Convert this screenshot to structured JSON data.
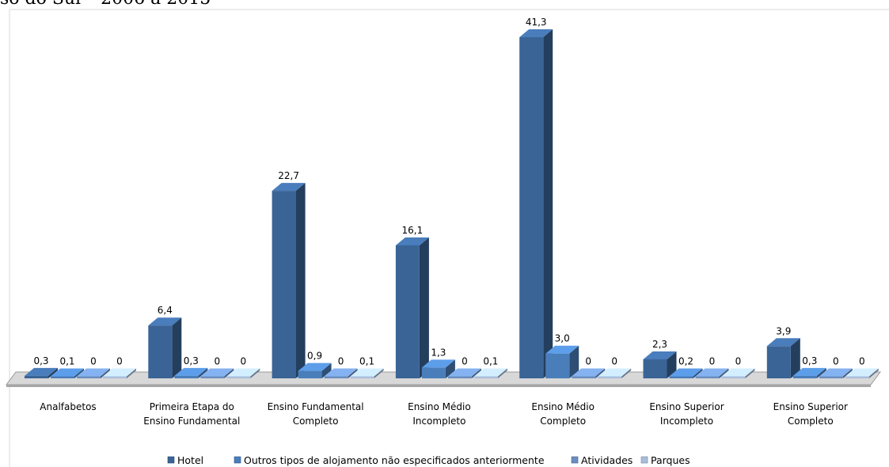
{
  "chart_data": {
    "type": "bar",
    "title": "so do Sul – 2006 a 2015",
    "categories": [
      [
        "Analfabetos"
      ],
      [
        "Primeira Etapa  do",
        "Ensino Fundamental"
      ],
      [
        "Ensino Fundamental",
        "Completo"
      ],
      [
        "Ensino Médio",
        "Incompleto"
      ],
      [
        "Ensino Médio",
        "Completo"
      ],
      [
        "Ensino Superior",
        "Incompleto"
      ],
      [
        "Ensino Superior",
        "Completo"
      ]
    ],
    "series": [
      {
        "name": "Hotel",
        "values": [
          0.3,
          6.4,
          22.7,
          16.1,
          41.3,
          2.3,
          3.9
        ],
        "labels": [
          "0,3",
          "6,4",
          "22,7",
          "16,1",
          "41,3",
          "2,3",
          "3,9"
        ],
        "color": "#3A6496"
      },
      {
        "name": "Outros tipos de alojamento  não especificados anteriormente",
        "values": [
          0.1,
          0.3,
          0.9,
          1.3,
          3.0,
          0.2,
          0.3
        ],
        "labels": [
          "0,1",
          "0,3",
          "0,9",
          "1,3",
          "3,0",
          "0,2",
          "0,3"
        ],
        "color": "#4A7EBB"
      },
      {
        "name": "Atividades",
        "values": [
          0,
          0,
          0,
          0,
          0,
          0,
          0
        ],
        "labels": [
          "0",
          "0",
          "0",
          "0",
          "0",
          "0",
          "0"
        ],
        "color": "#6A8EC0"
      },
      {
        "name": "Parques",
        "values": [
          0,
          0,
          0.1,
          0.1,
          0,
          0,
          0
        ],
        "labels": [
          "0",
          "0",
          "0,1",
          "0,1",
          "0",
          "0",
          "0"
        ],
        "color": "#A9BEDC"
      }
    ],
    "ylim": [
      0,
      41.3
    ],
    "legend_position": "bottom",
    "grid": false
  }
}
